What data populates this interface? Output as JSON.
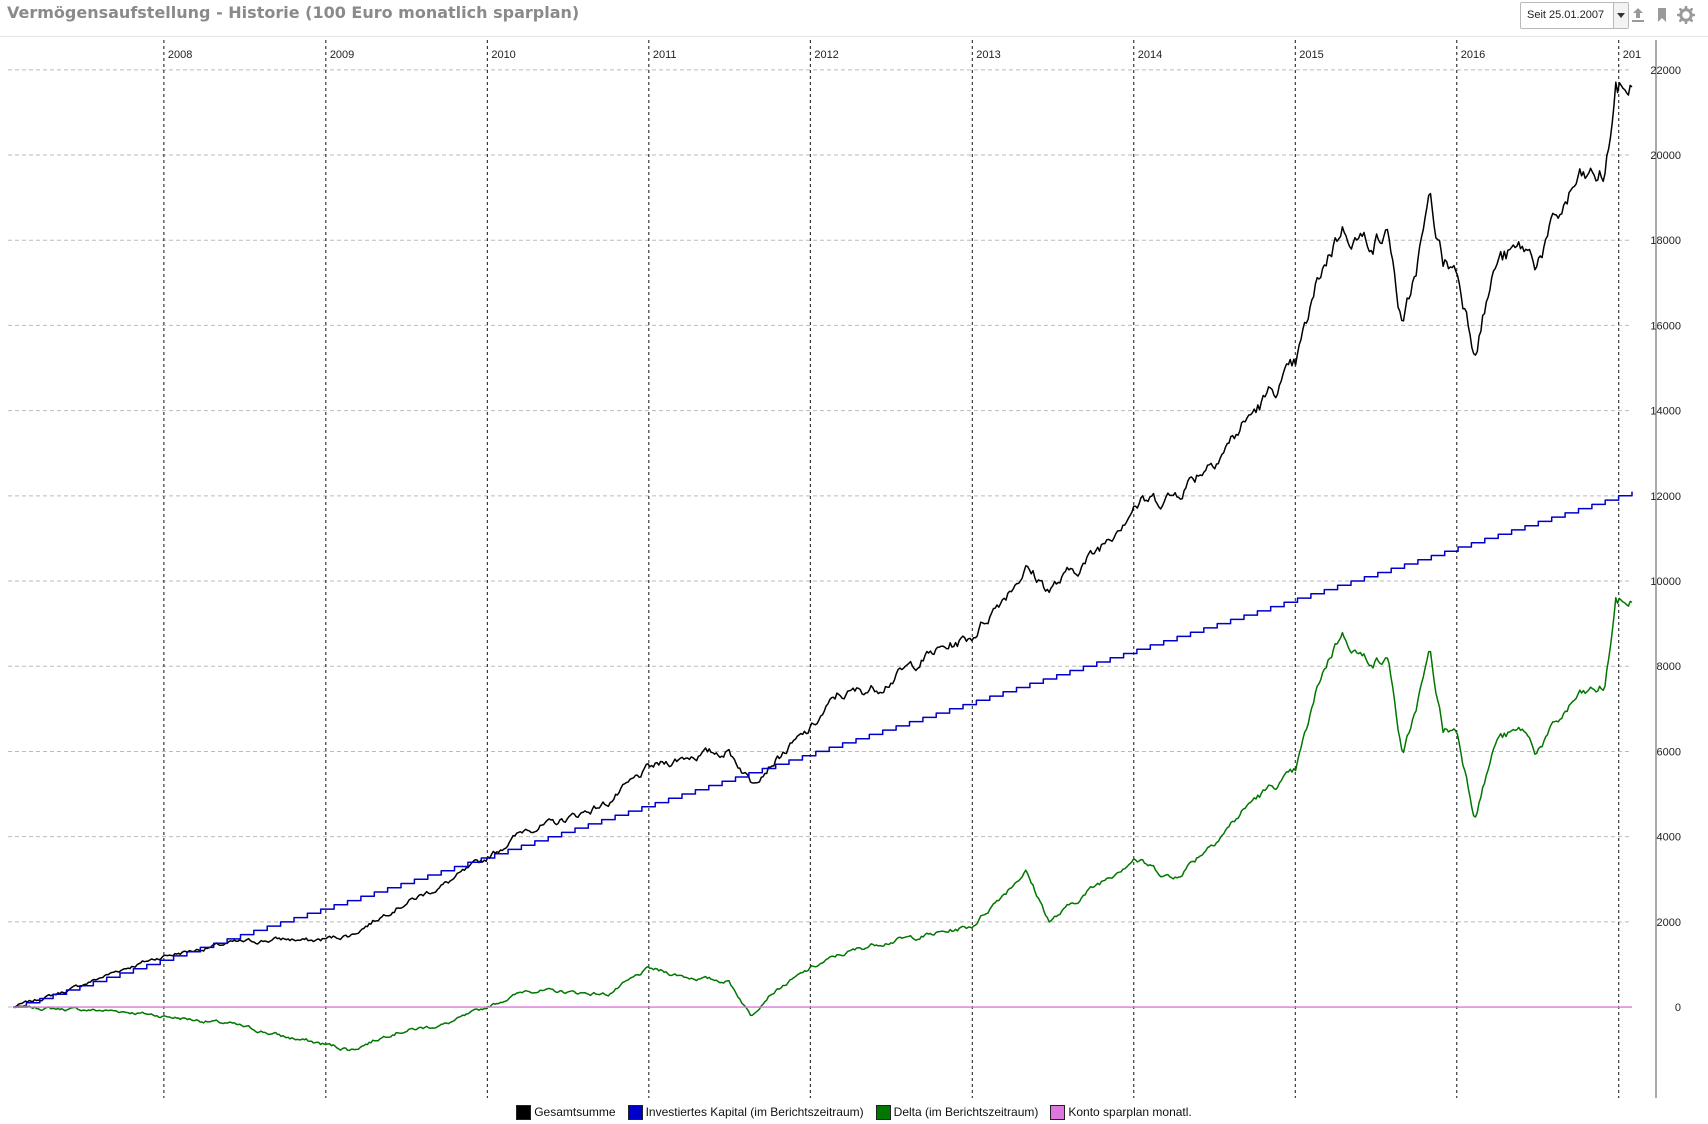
{
  "window": {
    "title": "Vermögensaufstellung - Historie (100 Euro monatlich sparplan)"
  },
  "toolbar": {
    "date_select_value": "Seit 25.01.2007",
    "icons": [
      "export-icon",
      "bookmark-icon",
      "gear-icon"
    ]
  },
  "chart_data": {
    "type": "line",
    "x_type": "date",
    "x_range": [
      "2007-01-25",
      "2017-01-31"
    ],
    "x_tick_labels": [
      "2008",
      "2009",
      "2010",
      "2011",
      "2012",
      "2013",
      "2014",
      "2015",
      "2016",
      "201"
    ],
    "x_tick_dates": [
      "2008-01-01",
      "2009-01-01",
      "2010-01-01",
      "2011-01-01",
      "2012-01-01",
      "2013-01-01",
      "2014-01-01",
      "2015-01-01",
      "2016-01-01",
      "2017-01-01"
    ],
    "y_tick_labels": [
      "22000",
      "20000",
      "18000",
      "16000",
      "14000",
      "12000",
      "10000",
      "8000",
      "6000",
      "4000",
      "2000",
      "0"
    ],
    "ylim": [
      -1900,
      22700
    ],
    "grid": true,
    "legend_position": "bottom",
    "series": [
      {
        "name": "Gesamtsumme",
        "color": "#000000",
        "x": [
          "2007-01-25",
          "2007-06-01",
          "2007-10-01",
          "2008-01-01",
          "2008-06-01",
          "2008-10-01",
          "2008-12-01",
          "2009-03-01",
          "2009-06-01",
          "2009-10-01",
          "2010-01-01",
          "2010-04-01",
          "2010-06-01",
          "2010-10-01",
          "2011-01-01",
          "2011-04-01",
          "2011-07-01",
          "2011-08-20",
          "2011-10-01",
          "2012-01-01",
          "2012-03-01",
          "2012-06-01",
          "2012-10-01",
          "2013-01-01",
          "2013-05-01",
          "2013-06-25",
          "2013-10-01",
          "2014-01-01",
          "2014-04-01",
          "2014-08-01",
          "2014-10-01",
          "2015-01-01",
          "2015-03-01",
          "2015-04-15",
          "2015-06-01",
          "2015-08-01",
          "2015-09-01",
          "2015-11-01",
          "2015-12-01",
          "2016-01-01",
          "2016-02-10",
          "2016-04-01",
          "2016-06-01",
          "2016-06-27",
          "2016-10-01",
          "2016-12-01",
          "2016-12-25",
          "2017-01-31"
        ],
        "y": [
          0,
          400,
          900,
          1200,
          1500,
          1600,
          1550,
          1700,
          2300,
          2900,
          3500,
          4200,
          4300,
          4800,
          5600,
          5900,
          6000,
          5300,
          5700,
          6500,
          7300,
          7500,
          8300,
          8700,
          10300,
          9800,
          10600,
          11800,
          12000,
          13200,
          14000,
          15000,
          17300,
          18300,
          18000,
          18100,
          15800,
          18900,
          17500,
          17300,
          15500,
          17500,
          17800,
          17500,
          19400,
          19500,
          21500,
          21600
        ]
      },
      {
        "name": "Investiertes Kapital (im Berichtszeitraum)",
        "color": "#0000cc",
        "x": [
          "2007-01-25",
          "2017-01-31"
        ],
        "y": [
          0,
          12100
        ]
      },
      {
        "name": "Delta (im Berichtszeitraum)",
        "color": "#007700",
        "x": [
          "2007-01-25",
          "2007-10-01",
          "2008-06-01",
          "2008-10-01",
          "2009-03-01",
          "2009-06-01",
          "2009-10-01",
          "2010-01-01",
          "2010-04-01",
          "2010-10-01",
          "2011-01-01",
          "2011-04-01",
          "2011-07-01",
          "2011-08-20",
          "2011-10-01",
          "2012-01-01",
          "2012-03-01",
          "2012-06-01",
          "2012-10-01",
          "2013-01-01",
          "2013-05-01",
          "2013-06-25",
          "2013-10-01",
          "2014-01-01",
          "2014-04-01",
          "2014-08-01",
          "2014-10-01",
          "2015-01-01",
          "2015-03-01",
          "2015-04-15",
          "2015-06-01",
          "2015-08-01",
          "2015-09-01",
          "2015-11-01",
          "2015-12-01",
          "2016-01-01",
          "2016-02-10",
          "2016-04-01",
          "2016-06-01",
          "2016-06-27",
          "2016-10-01",
          "2016-12-01",
          "2016-12-25",
          "2017-01-31"
        ],
        "y": [
          0,
          -100,
          -400,
          -700,
          -1000,
          -600,
          -400,
          0,
          400,
          300,
          900,
          700,
          600,
          -200,
          300,
          900,
          1200,
          1500,
          1700,
          1900,
          3200,
          2000,
          2800,
          3500,
          3000,
          4200,
          4900,
          5500,
          7800,
          8800,
          8200,
          8100,
          5800,
          8300,
          6500,
          6500,
          4500,
          6300,
          6500,
          6000,
          7300,
          7500,
          9500,
          9500
        ]
      },
      {
        "name": "Konto sparplan monatl.",
        "color": "#dd77dd",
        "x": [
          "2007-01-25",
          "2017-01-31"
        ],
        "y": [
          0,
          0
        ]
      }
    ]
  }
}
